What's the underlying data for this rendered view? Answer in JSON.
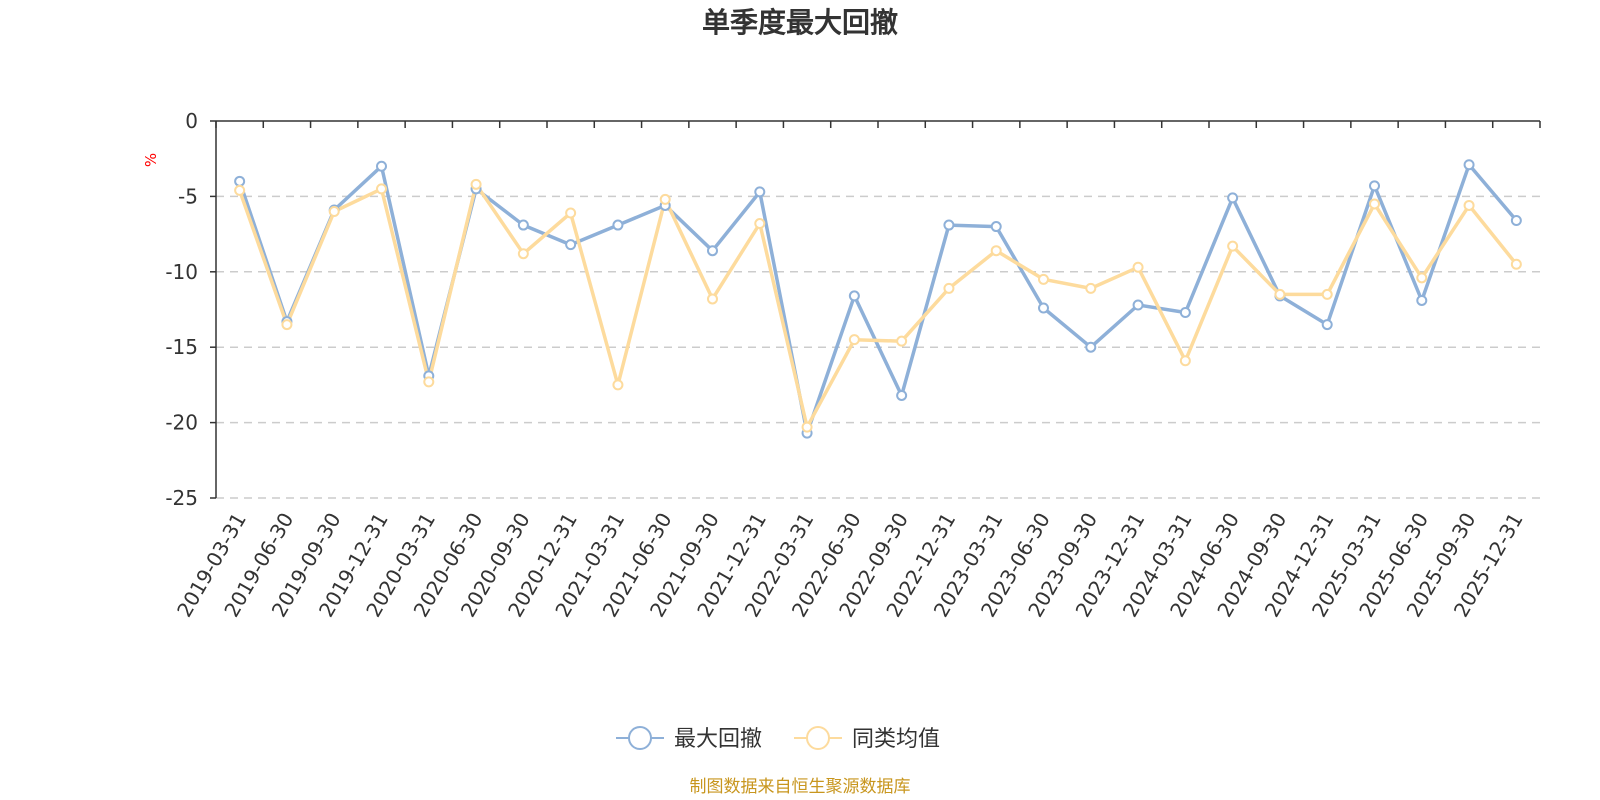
{
  "chart_data": {
    "type": "line",
    "title": "单季度最大回撤",
    "ylabel": "%",
    "ylim": [
      -25,
      0
    ],
    "yticks": [
      0,
      -5,
      -10,
      -15,
      -20,
      -25
    ],
    "categories": [
      "2019-03-31",
      "2019-06-30",
      "2019-09-30",
      "2019-12-31",
      "2020-03-31",
      "2020-06-30",
      "2020-09-30",
      "2020-12-31",
      "2021-03-31",
      "2021-06-30",
      "2021-09-30",
      "2021-12-31",
      "2022-03-31",
      "2022-06-30",
      "2022-09-30",
      "2022-12-31",
      "2023-03-31",
      "2023-06-30",
      "2023-09-30",
      "2023-12-31",
      "2024-03-31",
      "2024-06-30",
      "2024-09-30",
      "2024-12-31",
      "2025-03-31",
      "2025-06-30",
      "2025-09-30",
      "2025-12-31"
    ],
    "series": [
      {
        "name": "最大回撤",
        "color": "#8eb0d8",
        "values": [
          -4.0,
          -13.3,
          -5.9,
          -3.0,
          -16.9,
          -4.5,
          -6.9,
          -8.2,
          -6.9,
          -5.6,
          -8.6,
          -4.7,
          -20.7,
          -11.6,
          -18.2,
          -6.9,
          -7.0,
          -12.4,
          -15.0,
          -12.2,
          -12.7,
          -5.1,
          -11.6,
          -13.5,
          -4.3,
          -11.9,
          -2.9,
          -6.6
        ]
      },
      {
        "name": "同类均值",
        "color": "#fddb9d",
        "values": [
          -4.6,
          -13.5,
          -6.0,
          -4.5,
          -17.3,
          -4.2,
          -8.8,
          -6.1,
          -17.5,
          -5.2,
          -11.8,
          -6.8,
          -20.3,
          -14.5,
          -14.6,
          -11.1,
          -8.6,
          -10.5,
          -11.1,
          -9.7,
          -15.9,
          -8.3,
          -11.5,
          -11.5,
          -5.5,
          -10.4,
          -5.6,
          -9.5
        ]
      }
    ],
    "grid": true,
    "legend_position": "bottom-center"
  },
  "source_note": "制图数据来自恒生聚源数据库"
}
